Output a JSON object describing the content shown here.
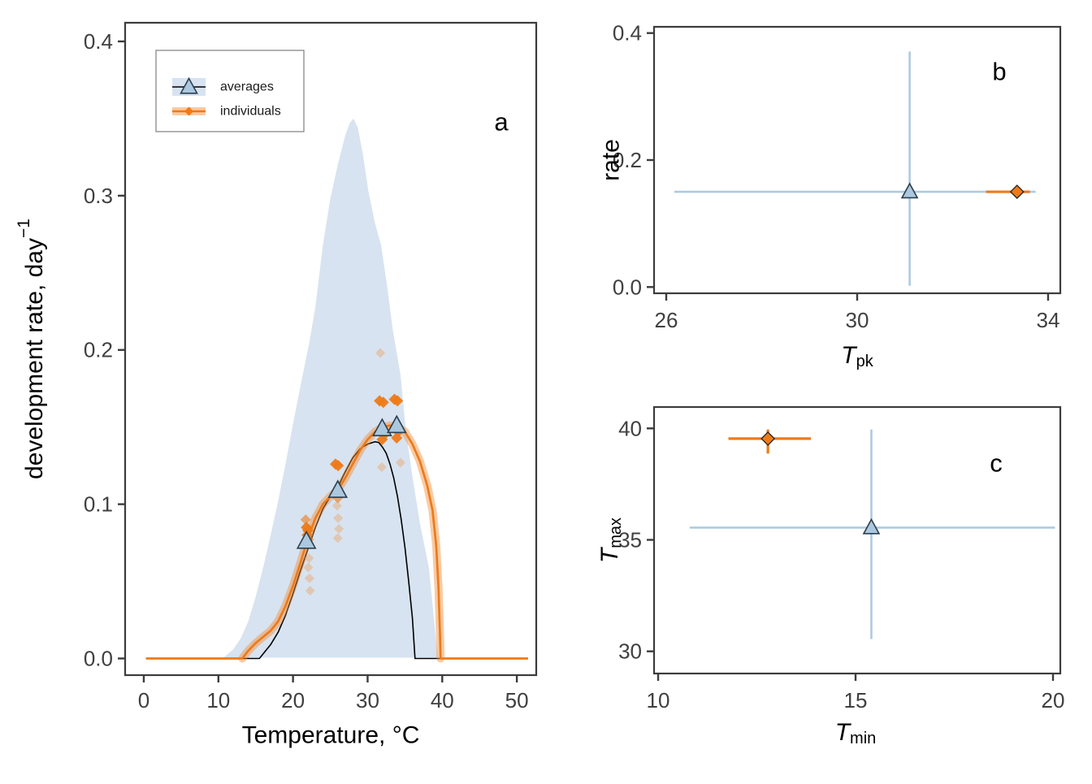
{
  "figure": {
    "background": "#ffffff",
    "panel_letters": {
      "a": "a",
      "b": "b",
      "c": "c"
    }
  },
  "colors": {
    "density_fill": "#d7e3f0",
    "triangle_fill": "#abc8de",
    "triangle_stroke": "#2c3e50",
    "blue_errorbar": "#aecbdf",
    "orange": "#ee7a18",
    "orange_halo": "rgba(242,140,56,0.45)",
    "orange_faint": "#f09a4e",
    "black_curve": "#000000",
    "panel_border": "#3c3c3c",
    "tick_text": "#404040",
    "title_text": "#000000",
    "legend_border": "#7f7f7f"
  },
  "legend": {
    "items": [
      {
        "label": "averages",
        "marker": "triangle-on-blue-band"
      },
      {
        "label": "individuals",
        "marker": "diamond-on-orange-band"
      }
    ]
  },
  "chart_data": [
    {
      "panel": "a",
      "type": "line",
      "title": "",
      "xlabel": "Temperature, °C",
      "ylabel": {
        "pre": "development rate, day",
        "sup": "−1"
      },
      "xlim": [
        -2.5,
        52.6
      ],
      "ylim": [
        -0.0108,
        0.4121
      ],
      "grid": false,
      "xticks": [
        {
          "v": 0,
          "label": "0"
        },
        {
          "v": 10,
          "label": "10"
        },
        {
          "v": 20,
          "label": "20"
        },
        {
          "v": 30,
          "label": "30"
        },
        {
          "v": 40,
          "label": "40"
        },
        {
          "v": 50,
          "label": "50"
        }
      ],
      "yticks": [
        {
          "v": 0,
          "label": "0.0"
        },
        {
          "v": 0.1,
          "label": "0.1"
        },
        {
          "v": 0.2,
          "label": "0.2"
        },
        {
          "v": 0.3,
          "label": "0.3"
        },
        {
          "v": 0.4,
          "label": "0.4"
        }
      ],
      "density_outline": [
        [
          10.8,
          0.001
        ],
        [
          12,
          0.006
        ],
        [
          13,
          0.013
        ],
        [
          14,
          0.024
        ],
        [
          15,
          0.04
        ],
        [
          16,
          0.059
        ],
        [
          17,
          0.08
        ],
        [
          18,
          0.102
        ],
        [
          19,
          0.126
        ],
        [
          20,
          0.152
        ],
        [
          21.3,
          0.184
        ],
        [
          22.2,
          0.205
        ],
        [
          23,
          0.228
        ],
        [
          24,
          0.268
        ],
        [
          25,
          0.298
        ],
        [
          26,
          0.32
        ],
        [
          27,
          0.339
        ],
        [
          27.6,
          0.347
        ],
        [
          28.1,
          0.35
        ],
        [
          28.7,
          0.344
        ],
        [
          29.4,
          0.326
        ],
        [
          30.1,
          0.303
        ],
        [
          31,
          0.282
        ],
        [
          31.8,
          0.268
        ],
        [
          32.6,
          0.242
        ],
        [
          33.4,
          0.212
        ],
        [
          34.4,
          0.184
        ],
        [
          35.1,
          0.149
        ],
        [
          36,
          0.118
        ],
        [
          37,
          0.088
        ],
        [
          38.2,
          0.059
        ],
        [
          38.8,
          0.03
        ],
        [
          39.2,
          0.01
        ],
        [
          39.45,
          0.001
        ]
      ],
      "mean_curve": [
        [
          0.3,
          0
        ],
        [
          15.5,
          0
        ],
        [
          16,
          0.003
        ],
        [
          17,
          0.009
        ],
        [
          18,
          0.017
        ],
        [
          19,
          0.028
        ],
        [
          20,
          0.042
        ],
        [
          21,
          0.057
        ],
        [
          22,
          0.071
        ],
        [
          23,
          0.085
        ],
        [
          24,
          0.097
        ],
        [
          25,
          0.105
        ],
        [
          26,
          0.111
        ],
        [
          27,
          0.121
        ],
        [
          28,
          0.13
        ],
        [
          29,
          0.136
        ],
        [
          30,
          0.139
        ],
        [
          31,
          0.1405
        ],
        [
          31.5,
          0.14
        ],
        [
          32,
          0.137
        ],
        [
          32.5,
          0.133
        ],
        [
          33,
          0.126
        ],
        [
          33.5,
          0.117
        ],
        [
          34,
          0.105
        ],
        [
          34.5,
          0.09
        ],
        [
          35,
          0.072
        ],
        [
          35.5,
          0.05
        ],
        [
          36,
          0.026
        ],
        [
          36.35,
          0
        ],
        [
          51.5,
          0
        ]
      ],
      "individual_curve": [
        [
          0.3,
          0
        ],
        [
          13.2,
          0
        ],
        [
          14,
          0.005
        ],
        [
          15,
          0.01
        ],
        [
          16,
          0.014
        ],
        [
          17,
          0.018
        ],
        [
          18,
          0.024
        ],
        [
          19,
          0.034
        ],
        [
          20,
          0.047
        ],
        [
          21,
          0.062
        ],
        [
          22,
          0.078
        ],
        [
          23,
          0.091
        ],
        [
          24,
          0.1
        ],
        [
          25,
          0.105
        ],
        [
          26,
          0.109
        ],
        [
          27,
          0.117
        ],
        [
          28,
          0.126
        ],
        [
          29,
          0.135
        ],
        [
          30,
          0.142
        ],
        [
          31,
          0.147
        ],
        [
          32,
          0.15
        ],
        [
          33,
          0.151
        ],
        [
          34,
          0.15
        ],
        [
          35,
          0.147
        ],
        [
          36,
          0.139
        ],
        [
          37,
          0.128
        ],
        [
          38,
          0.112
        ],
        [
          38.7,
          0.096
        ],
        [
          39.2,
          0.073
        ],
        [
          39.5,
          0.046
        ],
        [
          39.7,
          0.016
        ],
        [
          39.78,
          0
        ],
        [
          51.5,
          0
        ]
      ],
      "halo_range": [
        13.0,
        39.8
      ],
      "averages_points": [
        [
          21.8,
          0.076
        ],
        [
          26.0,
          0.109
        ],
        [
          31.95,
          0.149
        ],
        [
          33.9,
          0.151
        ]
      ],
      "individual_points": {
        "strong": [
          [
            21.8,
            0.085
          ],
          [
            22.0,
            0.083
          ],
          [
            21.9,
            0.08
          ],
          [
            25.7,
            0.126
          ],
          [
            26.05,
            0.125
          ],
          [
            31.6,
            0.167
          ],
          [
            32.1,
            0.166
          ],
          [
            31.85,
            0.148
          ],
          [
            32.2,
            0.145
          ],
          [
            31.95,
            0.142
          ],
          [
            33.6,
            0.168
          ],
          [
            34.0,
            0.167
          ],
          [
            33.75,
            0.15
          ],
          [
            34.1,
            0.147
          ],
          [
            33.9,
            0.143
          ]
        ],
        "mid": [
          [
            21.7,
            0.09
          ],
          [
            22.1,
            0.077
          ],
          [
            26.0,
            0.104
          ]
        ],
        "faint": [
          [
            22.15,
            0.065
          ],
          [
            22.05,
            0.059
          ],
          [
            22.2,
            0.052
          ],
          [
            22.3,
            0.044
          ],
          [
            25.9,
            0.099
          ],
          [
            26.05,
            0.091
          ],
          [
            26.15,
            0.084
          ],
          [
            26.0,
            0.078
          ],
          [
            31.7,
            0.198
          ],
          [
            31.9,
            0.124
          ],
          [
            34.4,
            0.127
          ]
        ]
      }
    },
    {
      "panel": "b",
      "type": "scatter",
      "xlabel": {
        "main": "T",
        "sub": "pk"
      },
      "ylabel": "rate",
      "xlim": [
        25.745,
        34.256
      ],
      "ylim": [
        -0.00985,
        0.40985
      ],
      "xticks": [
        {
          "v": 26,
          "label": "26"
        },
        {
          "v": 30,
          "label": "30"
        },
        {
          "v": 34,
          "label": "34"
        }
      ],
      "yticks": [
        {
          "v": 0,
          "label": "0.0"
        },
        {
          "v": 0.2,
          "label": "0.2"
        },
        {
          "v": 0.4,
          "label": "0.4"
        }
      ],
      "points": [
        {
          "series": "averages",
          "x": 31.1,
          "y": 0.15,
          "xerr": [
            26.17,
            33.74
          ],
          "yerr": [
            0.002,
            0.371
          ]
        },
        {
          "series": "individuals",
          "x": 33.35,
          "y": 0.15,
          "xerr": [
            32.7,
            33.62
          ],
          "yerr": [
            0.148,
            0.152
          ]
        }
      ]
    },
    {
      "panel": "c",
      "type": "scatter",
      "xlabel": {
        "main": "T",
        "sub": "min"
      },
      "ylabel": {
        "main": "T",
        "sub": "max"
      },
      "xlim": [
        9.897,
        20.185
      ],
      "ylim": [
        29.005,
        40.958
      ],
      "xticks": [
        {
          "v": 10,
          "label": "10"
        },
        {
          "v": 15,
          "label": "15"
        },
        {
          "v": 20,
          "label": "20"
        }
      ],
      "yticks": [
        {
          "v": 30,
          "label": "30"
        },
        {
          "v": 35,
          "label": "35"
        },
        {
          "v": 40,
          "label": "40"
        }
      ],
      "points": [
        {
          "series": "averages",
          "x": 15.4,
          "y": 35.55,
          "xerr": [
            10.8,
            20.05
          ],
          "yerr": [
            30.55,
            39.95
          ]
        },
        {
          "series": "individuals",
          "x": 12.78,
          "y": 39.54,
          "xerr": [
            11.78,
            13.87
          ],
          "yerr": [
            38.87,
            39.95
          ]
        }
      ]
    }
  ]
}
